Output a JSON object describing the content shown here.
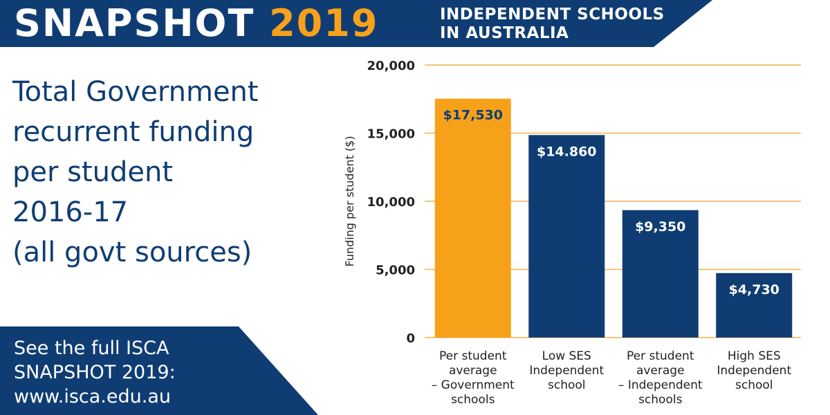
{
  "banner": {
    "title_main": "SNAPSHOT",
    "title_year": "2019",
    "subtitle_lines": [
      "INDEPENDENT SCHOOLS",
      "IN AUSTRALIA"
    ]
  },
  "headline": {
    "lines": [
      "Total Government",
      "recurrent funding",
      "per student",
      "2016-17",
      "(all govt sources)"
    ]
  },
  "footer": {
    "lines": [
      "See the full ISCA",
      "SNAPSHOT 2019:",
      "www.isca.edu.au"
    ]
  },
  "colors": {
    "navy": "#0f3d73",
    "orange": "#f7a11a",
    "gridline": "#f2b24a"
  },
  "chart_data": {
    "type": "bar",
    "title": "",
    "ylabel": "Funding per student ($)",
    "xlabel": "",
    "ylim": [
      0,
      20000
    ],
    "yticks": [
      0,
      5000,
      10000,
      15000,
      20000
    ],
    "ytick_labels": [
      "0",
      "5,000",
      "10,000",
      "15,000",
      "20,000"
    ],
    "grid": true,
    "categories": [
      [
        "Per student",
        "average",
        "– Government",
        "schools"
      ],
      [
        "Low SES",
        "Independent",
        "school"
      ],
      [
        "Per student",
        "average",
        "– Independent",
        "schools"
      ],
      [
        "High SES",
        "Independent",
        "school"
      ]
    ],
    "values": [
      17530,
      14860,
      9350,
      4730
    ],
    "data_labels": [
      "$17,530",
      "$14.860",
      "$9,350",
      "$4,730"
    ],
    "bar_colors": [
      "#f7a11a",
      "#0f3d73",
      "#0f3d73",
      "#0f3d73"
    ]
  }
}
